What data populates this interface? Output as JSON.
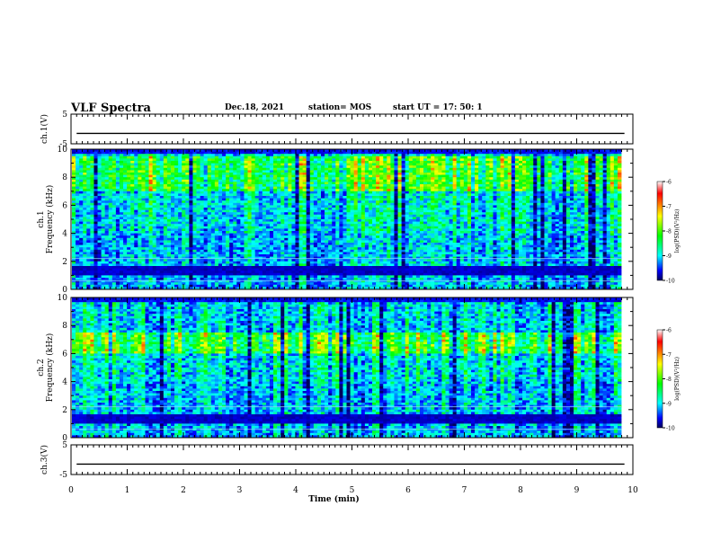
{
  "header": {
    "title": "VLF Spectra",
    "date": "Dec.18, 2021",
    "station": "station= MOS",
    "start_ut": "start  UT  =   17: 50: 1"
  },
  "chart_data": [
    {
      "type": "line",
      "panel": "ch1-waveform",
      "ylabel": "ch.1(V)",
      "ylim": [
        -5,
        5
      ],
      "yticks": [
        5,
        -5
      ],
      "xlim": [
        0,
        10
      ],
      "series": [
        {
          "values": [
            -1.5,
            -1.5
          ]
        }
      ]
    },
    {
      "type": "heatmap",
      "panel": "ch1-spectrogram",
      "ylabel": "ch.1\nFrequency (kHz)",
      "ylim": [
        0,
        10
      ],
      "yticks": [
        0,
        2,
        4,
        6,
        8,
        10
      ],
      "xlim": [
        0,
        9.85
      ],
      "colorbar": {
        "label": "log(PSD)(V²/Hz)",
        "range": [
          -10,
          -6
        ],
        "ticks": [
          -6,
          -7,
          -8,
          -9,
          -10
        ]
      },
      "dominant_band_khz": [
        7,
        9.5
      ]
    },
    {
      "type": "heatmap",
      "panel": "ch2-spectrogram",
      "ylabel": "ch.2\nFrequency (kHz)",
      "ylim": [
        0,
        10
      ],
      "yticks": [
        0,
        2,
        4,
        6,
        8,
        10
      ],
      "xlim": [
        0,
        9.85
      ],
      "colorbar": {
        "label": "log(PSD)(V²/Hz)",
        "range": [
          -10,
          -6
        ],
        "ticks": [
          -6,
          -7,
          -8,
          -9,
          -10
        ]
      },
      "dominant_band_khz": [
        6,
        7.5
      ]
    },
    {
      "type": "line",
      "panel": "ch3-waveform",
      "ylabel": "ch.3(V)",
      "ylim": [
        -5,
        5
      ],
      "yticks": [
        5,
        -5
      ],
      "xlabel": "Time (min)",
      "xlim": [
        0,
        10
      ],
      "xticks": [
        0,
        1,
        2,
        3,
        4,
        5,
        6,
        7,
        8,
        9,
        10
      ],
      "series": [
        {
          "values": [
            -1.5,
            -1.5
          ]
        }
      ]
    }
  ],
  "colors": {
    "scale": [
      "#00005a",
      "#0000ff",
      "#00ffff",
      "#00ff00",
      "#ffff00",
      "#ff0000",
      "#ffffff"
    ]
  }
}
